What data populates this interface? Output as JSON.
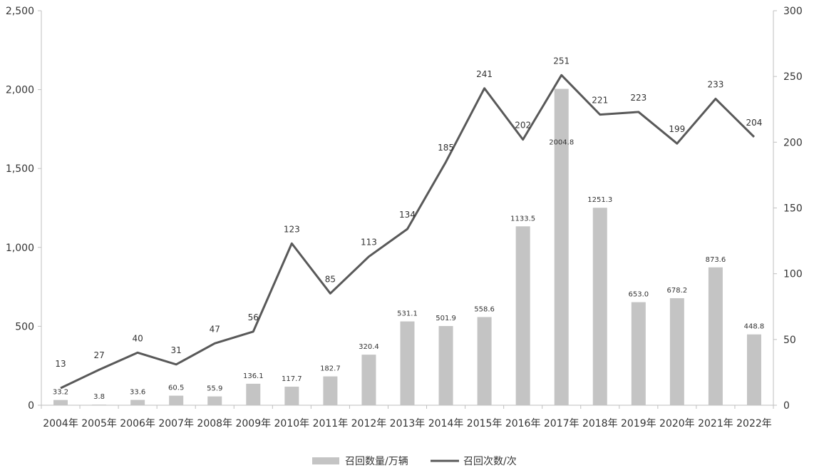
{
  "chart_data": {
    "type": "bar",
    "categories": [
      "2004年",
      "2005年",
      "2006年",
      "2007年",
      "2008年",
      "2009年",
      "2010年",
      "2011年",
      "2012年",
      "2013年",
      "2014年",
      "2015年",
      "2016年",
      "2017年",
      "2018年",
      "2019年",
      "2020年",
      "2021年",
      "2022年"
    ],
    "series": [
      {
        "name": "召回数量/万辆",
        "type": "bar",
        "axis": "left",
        "color": "#c4c4c4",
        "values": [
          33.2,
          3.8,
          33.6,
          60.5,
          55.9,
          136.1,
          117.7,
          182.7,
          320.4,
          531.1,
          501.9,
          558.6,
          1133.5,
          2004.8,
          1251.3,
          653.0,
          678.2,
          873.6,
          448.8
        ],
        "labels": [
          "33.2",
          "3.8",
          "33.6",
          "60.5",
          "55.9",
          "136.1",
          "117.7",
          "182.7",
          "320.4",
          "531.1",
          "501.9",
          "558.6",
          "1133.5",
          "2004.8",
          "1251.3",
          "653.0",
          "678.2",
          "873.6",
          "448.8"
        ]
      },
      {
        "name": "召回次数/次",
        "type": "line",
        "axis": "right",
        "color": "#595959",
        "values": [
          13,
          27,
          40,
          31,
          47,
          56,
          123,
          85,
          113,
          134,
          185,
          241,
          202,
          251,
          221,
          223,
          199,
          233,
          204
        ],
        "labels": [
          "13",
          "27",
          "40",
          "31",
          "47",
          "56",
          "123",
          "85",
          "113",
          "134",
          "185",
          "241",
          "202",
          "251",
          "221",
          "223",
          "199",
          "233",
          "204"
        ]
      }
    ],
    "y_left": {
      "ylim": [
        0,
        2500
      ],
      "ticks": [
        0,
        500,
        1000,
        1500,
        2000,
        2500
      ],
      "tick_labels": [
        "0",
        "500",
        "1,000",
        "1,500",
        "2,000",
        "2,500"
      ]
    },
    "y_right": {
      "ylim": [
        0,
        300
      ],
      "ticks": [
        0,
        50,
        100,
        150,
        200,
        250,
        300
      ],
      "tick_labels": [
        "0",
        "50",
        "100",
        "150",
        "200",
        "250",
        "300"
      ]
    },
    "grid": false,
    "legend_position": "bottom-center"
  }
}
